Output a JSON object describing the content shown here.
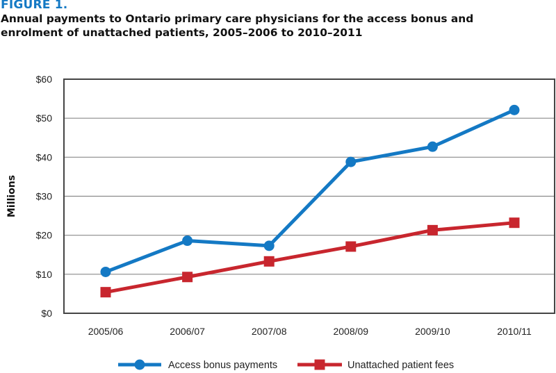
{
  "figure": {
    "label": "FIGURE 1.",
    "title_line1": "Annual payments to Ontario primary care physicians for the access bonus and",
    "title_line2": "enrolment of unattached patients, 2005–2006 to 2010–2011"
  },
  "chart_data": {
    "type": "line",
    "title": "Annual payments to Ontario primary care physicians for the access bonus and enrolment of unattached patients, 2005–2006 to 2010–2011",
    "xlabel": "",
    "ylabel": "Millions",
    "categories": [
      "2005/06",
      "2006/07",
      "2007/08",
      "2008/09",
      "2009/10",
      "2010/11"
    ],
    "ylim": [
      0,
      60
    ],
    "yticks": [
      0,
      10,
      20,
      30,
      40,
      50,
      60
    ],
    "ytick_labels": [
      "$0",
      "$10",
      "$20",
      "$30",
      "$40",
      "$50",
      "$60"
    ],
    "grid": "horizontal",
    "legend_position": "bottom",
    "series": [
      {
        "name": "Access bonus payments",
        "color": "#1479c4",
        "marker": "circle",
        "values": [
          10.6,
          18.6,
          17.3,
          38.8,
          42.7,
          52.1
        ]
      },
      {
        "name": "Unattached patient fees",
        "color": "#c8262e",
        "marker": "square",
        "values": [
          5.4,
          9.3,
          13.3,
          17.1,
          21.3,
          23.2
        ]
      }
    ]
  }
}
